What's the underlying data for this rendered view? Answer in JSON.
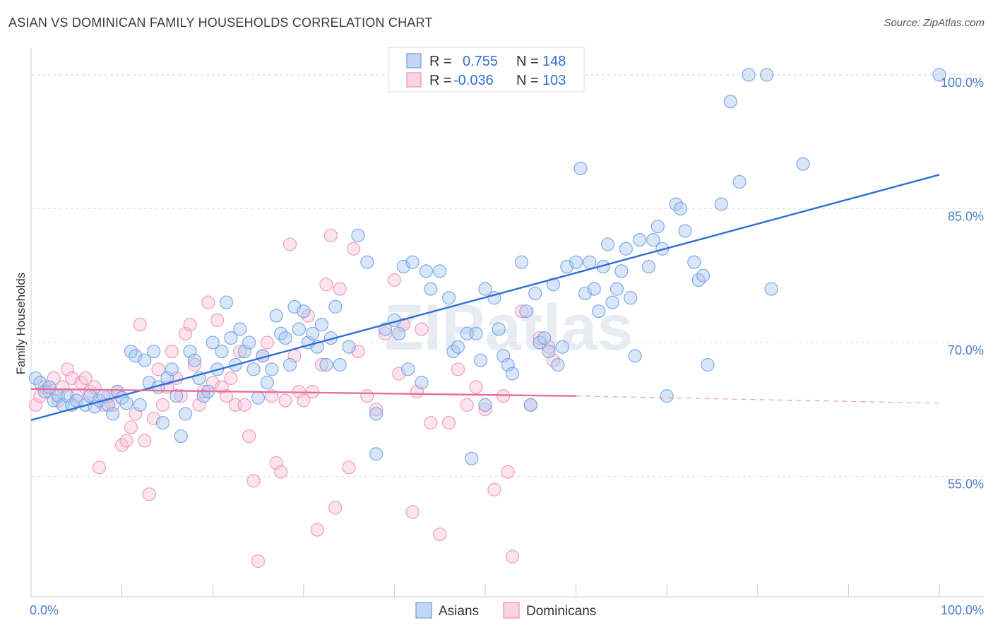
{
  "title": "ASIAN VS DOMINICAN FAMILY HOUSEHOLDS CORRELATION CHART",
  "source": "Source: ZipAtlas.com",
  "colors": {
    "asians": "#6a9ee6",
    "asians_fill": "#a9c7f0",
    "dominicans": "#f08db0",
    "dominicans_fill": "#f7c3d6",
    "asian_line": "#2f6fd6",
    "dominican_line": "#e86d99",
    "tick_text": "#4a7fd0"
  },
  "legend": {
    "rows": [
      {
        "r_label": "R =",
        "r_value": "0.755",
        "n_label": "N =",
        "n_value": "148"
      },
      {
        "r_label": "R =",
        "r_value": "-0.036",
        "n_label": "N =",
        "n_value": "103"
      }
    ]
  },
  "bottom_legend": [
    "Asians",
    "Dominicans"
  ],
  "watermark": "ZIPatlas",
  "chart_data": {
    "type": "scatter",
    "title": "ASIAN VS DOMINICAN FAMILY HOUSEHOLDS CORRELATION CHART",
    "xlabel": "",
    "ylabel": "Family Households",
    "xlim": [
      0,
      100
    ],
    "ylim": [
      41.5,
      103
    ],
    "x_tick_labels": [
      "0.0%",
      "100.0%"
    ],
    "y_ticks": [
      55,
      70,
      85,
      100
    ],
    "y_tick_labels": [
      "55.0%",
      "70.0%",
      "85.0%",
      "100.0%"
    ],
    "grid": "horizontal dashed",
    "legend_position": "top-center",
    "series": [
      {
        "name": "Asians",
        "trend": {
          "x": [
            0,
            100
          ],
          "y": [
            61.3,
            88.8
          ]
        },
        "points": [
          [
            0.5,
            66
          ],
          [
            1,
            65.5
          ],
          [
            1.5,
            64.5
          ],
          [
            2,
            65
          ],
          [
            2.5,
            63.5
          ],
          [
            3,
            64
          ],
          [
            3.5,
            63
          ],
          [
            4,
            64
          ],
          [
            4.5,
            63
          ],
          [
            5,
            63.5
          ],
          [
            6,
            63
          ],
          [
            6.5,
            64
          ],
          [
            7,
            62.8
          ],
          [
            7.5,
            63.5
          ],
          [
            8,
            64
          ],
          [
            8.5,
            63
          ],
          [
            9,
            62
          ],
          [
            9.5,
            64.5
          ],
          [
            10,
            63.8
          ],
          [
            10.5,
            63.2
          ],
          [
            11,
            69
          ],
          [
            11.5,
            68.5
          ],
          [
            12,
            63
          ],
          [
            12.5,
            68
          ],
          [
            13,
            65.5
          ],
          [
            13.5,
            69
          ],
          [
            14,
            65
          ],
          [
            14.5,
            61
          ],
          [
            15,
            66
          ],
          [
            15.5,
            67
          ],
          [
            16,
            64
          ],
          [
            16.5,
            59.5
          ],
          [
            17,
            62
          ],
          [
            17.5,
            69
          ],
          [
            18,
            68
          ],
          [
            18.5,
            66
          ],
          [
            19,
            64
          ],
          [
            19.5,
            64.5
          ],
          [
            20,
            70
          ],
          [
            20.5,
            67
          ],
          [
            21,
            69
          ],
          [
            21.5,
            74.5
          ],
          [
            22,
            70.5
          ],
          [
            22.5,
            67.5
          ],
          [
            23,
            71.5
          ],
          [
            23.5,
            69
          ],
          [
            24,
            70
          ],
          [
            24.5,
            67
          ],
          [
            25,
            63.8
          ],
          [
            25.5,
            68.5
          ],
          [
            26,
            65.5
          ],
          [
            26.5,
            67
          ],
          [
            27,
            73
          ],
          [
            27.5,
            71
          ],
          [
            28,
            70.5
          ],
          [
            28.5,
            67.5
          ],
          [
            29,
            74
          ],
          [
            29.5,
            71.5
          ],
          [
            30,
            73.5
          ],
          [
            30.5,
            70
          ],
          [
            31,
            71
          ],
          [
            31.5,
            69.5
          ],
          [
            32,
            72
          ],
          [
            32.5,
            67.5
          ],
          [
            33,
            70.5
          ],
          [
            33.5,
            74
          ],
          [
            34,
            67.5
          ],
          [
            35,
            69.5
          ],
          [
            36,
            82
          ],
          [
            37,
            79
          ],
          [
            38,
            62
          ],
          [
            38,
            57.5
          ],
          [
            39,
            71.5
          ],
          [
            40,
            72.5
          ],
          [
            40.5,
            71
          ],
          [
            41,
            78.5
          ],
          [
            41.5,
            67
          ],
          [
            42,
            79
          ],
          [
            43,
            65.5
          ],
          [
            43.5,
            78
          ],
          [
            44,
            76
          ],
          [
            45,
            78
          ],
          [
            46,
            75
          ],
          [
            46.5,
            69
          ],
          [
            47,
            69.5
          ],
          [
            48,
            71
          ],
          [
            48.5,
            57
          ],
          [
            49,
            71
          ],
          [
            49.5,
            68
          ],
          [
            50,
            63
          ],
          [
            50,
            76
          ],
          [
            51,
            75
          ],
          [
            51.5,
            71.5
          ],
          [
            52,
            68.5
          ],
          [
            52.5,
            67.5
          ],
          [
            53,
            66.5
          ],
          [
            54,
            79
          ],
          [
            54.5,
            73.5
          ],
          [
            55,
            63
          ],
          [
            55.5,
            75.5
          ],
          [
            56,
            70
          ],
          [
            56.5,
            70.5
          ],
          [
            57,
            69
          ],
          [
            57.5,
            76.5
          ],
          [
            58,
            67.5
          ],
          [
            58.5,
            69.5
          ],
          [
            59,
            78.5
          ],
          [
            60,
            79
          ],
          [
            60.5,
            89.5
          ],
          [
            61,
            75.5
          ],
          [
            61.5,
            79
          ],
          [
            62,
            76
          ],
          [
            62.5,
            73.5
          ],
          [
            63,
            78.5
          ],
          [
            63.5,
            81
          ],
          [
            64,
            74.5
          ],
          [
            64.5,
            76
          ],
          [
            65,
            78
          ],
          [
            65.5,
            80.5
          ],
          [
            66,
            75
          ],
          [
            66.5,
            68.5
          ],
          [
            67,
            81.5
          ],
          [
            68,
            78.5
          ],
          [
            68.5,
            81.5
          ],
          [
            69,
            83
          ],
          [
            69.5,
            80.5
          ],
          [
            70,
            64
          ],
          [
            71,
            85.5
          ],
          [
            71.5,
            85
          ],
          [
            72,
            82.5
          ],
          [
            73,
            79
          ],
          [
            73.5,
            77
          ],
          [
            74,
            77.5
          ],
          [
            74.5,
            67.5
          ],
          [
            76,
            85.5
          ],
          [
            77,
            97
          ],
          [
            78,
            88
          ],
          [
            79,
            100
          ],
          [
            81,
            100
          ],
          [
            81.5,
            76
          ],
          [
            85,
            90
          ],
          [
            100,
            100
          ]
        ]
      },
      {
        "name": "Dominicans",
        "trend": {
          "x": [
            0,
            60
          ],
          "y": [
            64.8,
            64.0
          ]
        },
        "trend_dashed": {
          "x": [
            60,
            100
          ],
          "y": [
            64.0,
            63.2
          ]
        },
        "points": [
          [
            0.5,
            63
          ],
          [
            1,
            64
          ],
          [
            1.5,
            65
          ],
          [
            2,
            64.5
          ],
          [
            2.5,
            66
          ],
          [
            3,
            63.5
          ],
          [
            3.5,
            65
          ],
          [
            4,
            67
          ],
          [
            4.5,
            66
          ],
          [
            5,
            64
          ],
          [
            5.5,
            65.5
          ],
          [
            6,
            66
          ],
          [
            6.5,
            64.5
          ],
          [
            7,
            65
          ],
          [
            7.5,
            56
          ],
          [
            8,
            63
          ],
          [
            8.5,
            64
          ],
          [
            9,
            63
          ],
          [
            9.5,
            64.5
          ],
          [
            10,
            58.5
          ],
          [
            10.5,
            59
          ],
          [
            11,
            60.5
          ],
          [
            11.5,
            62
          ],
          [
            12,
            72
          ],
          [
            12.5,
            59
          ],
          [
            13,
            53
          ],
          [
            13.5,
            61.5
          ],
          [
            14,
            67
          ],
          [
            14.5,
            63
          ],
          [
            15,
            65
          ],
          [
            15.5,
            69
          ],
          [
            16,
            66
          ],
          [
            16.5,
            64
          ],
          [
            17,
            71
          ],
          [
            17.5,
            72
          ],
          [
            18,
            67.5
          ],
          [
            18.5,
            63
          ],
          [
            19,
            64.5
          ],
          [
            19.5,
            74.5
          ],
          [
            20,
            65.5
          ],
          [
            20.5,
            72.5
          ],
          [
            21,
            65
          ],
          [
            21.5,
            64
          ],
          [
            22,
            66
          ],
          [
            22.5,
            63
          ],
          [
            23,
            69
          ],
          [
            23.5,
            63
          ],
          [
            24,
            59.5
          ],
          [
            24.5,
            54.5
          ],
          [
            25,
            45.5
          ],
          [
            25.5,
            68.5
          ],
          [
            26,
            70
          ],
          [
            26.5,
            64
          ],
          [
            27,
            56.5
          ],
          [
            27.5,
            55.5
          ],
          [
            28,
            63.5
          ],
          [
            28.5,
            81
          ],
          [
            29,
            68.5
          ],
          [
            29.5,
            64.5
          ],
          [
            30,
            63.5
          ],
          [
            30.5,
            73
          ],
          [
            31,
            64.5
          ],
          [
            31.5,
            49
          ],
          [
            32,
            67.5
          ],
          [
            32.5,
            76.5
          ],
          [
            33,
            82
          ],
          [
            33.5,
            51.5
          ],
          [
            34,
            76
          ],
          [
            35,
            56
          ],
          [
            35.5,
            80.5
          ],
          [
            36,
            69
          ],
          [
            37,
            64
          ],
          [
            38,
            62.5
          ],
          [
            39,
            71
          ],
          [
            40,
            77
          ],
          [
            40.5,
            66.5
          ],
          [
            41,
            72
          ],
          [
            42,
            51
          ],
          [
            42.5,
            64.5
          ],
          [
            43,
            71.5
          ],
          [
            44,
            61
          ],
          [
            45,
            48.5
          ],
          [
            46,
            61
          ],
          [
            47,
            67
          ],
          [
            48,
            63
          ],
          [
            49,
            65
          ],
          [
            50,
            62.5
          ],
          [
            51,
            53.5
          ],
          [
            52,
            64
          ],
          [
            52.5,
            55.5
          ],
          [
            53,
            46
          ],
          [
            54,
            73.5
          ],
          [
            55,
            63
          ],
          [
            56,
            70.5
          ],
          [
            57,
            69.5
          ],
          [
            57.5,
            68
          ]
        ]
      }
    ]
  }
}
